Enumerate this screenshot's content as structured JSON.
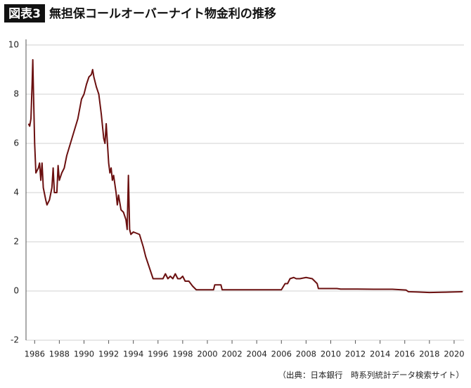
{
  "chart_data": {
    "type": "line",
    "figure_label": "図表3",
    "title": "無担保コールオーバーナイト物金利の推移",
    "source": "（出典：日本銀行　時系列統計データ検索サイト）",
    "color": "#6b1010",
    "grid": true,
    "xlim": [
      1985.3,
      2020.8
    ],
    "ylim": [
      -2,
      10
    ],
    "xticks": [
      1986,
      1988,
      1990,
      1992,
      1994,
      1996,
      1998,
      2000,
      2002,
      2004,
      2006,
      2008,
      2010,
      2012,
      2014,
      2016,
      2018,
      2020
    ],
    "yticks": [
      -2,
      0,
      2,
      4,
      6,
      8,
      10
    ],
    "x": [
      1985.5,
      1985.6,
      1985.7,
      1985.8,
      1985.85,
      1985.9,
      1986.0,
      1986.1,
      1986.3,
      1986.4,
      1986.5,
      1986.6,
      1986.7,
      1986.9,
      1987.0,
      1987.2,
      1987.4,
      1987.5,
      1987.6,
      1987.8,
      1987.9,
      1988.0,
      1988.2,
      1988.4,
      1988.6,
      1988.9,
      1989.2,
      1989.5,
      1989.8,
      1990.0,
      1990.2,
      1990.4,
      1990.6,
      1990.7,
      1990.8,
      1991.0,
      1991.2,
      1991.4,
      1991.6,
      1991.7,
      1991.8,
      1991.9,
      1992.0,
      1992.1,
      1992.2,
      1992.3,
      1992.4,
      1992.6,
      1992.7,
      1992.8,
      1993.0,
      1993.2,
      1993.4,
      1993.5,
      1993.6,
      1993.7,
      1993.8,
      1994.0,
      1994.5,
      1994.8,
      1995.0,
      1995.2,
      1995.4,
      1995.6,
      1996.0,
      1996.4,
      1996.6,
      1996.8,
      1997.0,
      1997.2,
      1997.4,
      1997.6,
      1997.8,
      1998.0,
      1998.2,
      1998.5,
      1998.8,
      1999.1,
      1999.5,
      2000.0,
      2000.5,
      2000.6,
      2000.9,
      2001.1,
      2001.2,
      2001.5,
      2006.0,
      2006.3,
      2006.5,
      2006.7,
      2007.0,
      2007.2,
      2007.5,
      2008.0,
      2008.5,
      2008.9,
      2009.0,
      2010.0,
      2010.5,
      2010.8,
      2012.0,
      2013.5,
      2015.0,
      2016.1,
      2016.3,
      2017.0,
      2018.0,
      2019.0,
      2020.7
    ],
    "values": [
      6.8,
      6.7,
      7.0,
      8.5,
      9.4,
      8.2,
      6.0,
      4.8,
      5.0,
      5.2,
      4.5,
      5.2,
      4.2,
      3.7,
      3.5,
      3.7,
      4.2,
      5.0,
      4.0,
      4.0,
      5.1,
      4.5,
      4.8,
      5.0,
      5.5,
      6.0,
      6.5,
      7.0,
      7.8,
      8.0,
      8.4,
      8.7,
      8.8,
      9.0,
      8.7,
      8.3,
      8.0,
      7.2,
      6.2,
      6.0,
      6.8,
      6.0,
      5.2,
      4.8,
      5.0,
      4.5,
      4.7,
      4.0,
      3.5,
      3.9,
      3.3,
      3.2,
      2.9,
      2.5,
      4.7,
      2.5,
      2.3,
      2.4,
      2.3,
      1.8,
      1.4,
      1.1,
      0.8,
      0.5,
      0.5,
      0.5,
      0.7,
      0.5,
      0.6,
      0.5,
      0.7,
      0.5,
      0.5,
      0.6,
      0.4,
      0.4,
      0.2,
      0.05,
      0.05,
      0.05,
      0.05,
      0.25,
      0.25,
      0.25,
      0.05,
      0.05,
      0.05,
      0.3,
      0.3,
      0.5,
      0.55,
      0.5,
      0.5,
      0.55,
      0.5,
      0.3,
      0.1,
      0.1,
      0.1,
      0.08,
      0.08,
      0.07,
      0.07,
      0.04,
      -0.03,
      -0.04,
      -0.06,
      -0.05,
      -0.03
    ]
  }
}
